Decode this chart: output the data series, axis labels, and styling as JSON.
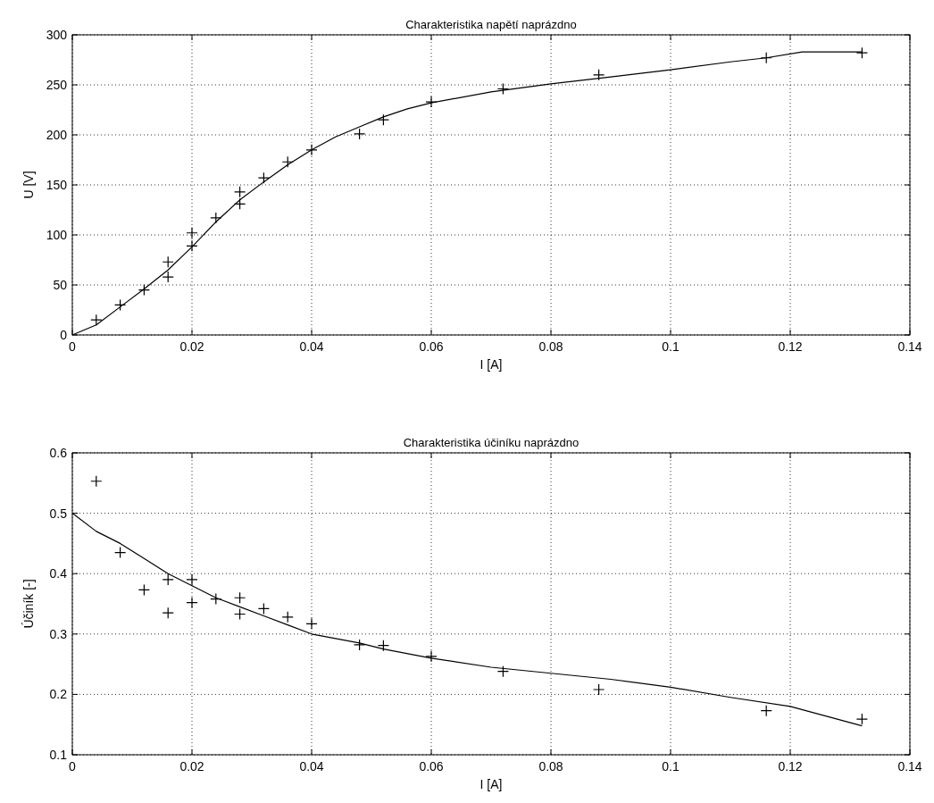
{
  "chart_data": [
    {
      "type": "scatter",
      "title": "Charakteristika napětí naprázdno",
      "xlabel": "I [A]",
      "ylabel": "U [V]",
      "xlim": [
        0,
        0.14
      ],
      "ylim": [
        0,
        300
      ],
      "xticks": [
        0,
        0.02,
        0.04,
        0.06,
        0.08,
        0.1,
        0.12,
        0.14
      ],
      "yticks": [
        0,
        50,
        100,
        150,
        200,
        250,
        300
      ],
      "grid": true,
      "series": [
        {
          "type": "scatter",
          "marker": "cross",
          "color": "#000000",
          "x": [
            0.004,
            0.008,
            0.012,
            0.016,
            0.016,
            0.02,
            0.02,
            0.024,
            0.028,
            0.028,
            0.032,
            0.036,
            0.04,
            0.048,
            0.052,
            0.06,
            0.072,
            0.088,
            0.116,
            0.132
          ],
          "values": [
            15,
            30,
            45,
            73,
            58,
            102,
            89,
            117,
            143,
            131,
            157,
            173,
            185,
            201,
            215,
            233,
            246,
            260,
            277,
            282
          ]
        },
        {
          "type": "line",
          "marker": "none",
          "line_style": "solid",
          "color": "#000000",
          "x": [
            0,
            0.004,
            0.008,
            0.012,
            0.016,
            0.02,
            0.024,
            0.028,
            0.032,
            0.036,
            0.04,
            0.044,
            0.048,
            0.052,
            0.056,
            0.06,
            0.07,
            0.08,
            0.09,
            0.1,
            0.11,
            0.116,
            0.122,
            0.132
          ],
          "values": [
            0,
            10,
            28,
            46,
            65,
            88,
            113,
            135,
            153,
            170,
            185,
            198,
            208,
            218,
            226,
            232,
            243,
            251,
            258,
            265,
            273,
            277,
            283,
            283
          ]
        }
      ]
    },
    {
      "type": "scatter",
      "title": "Charakteristika účiníku naprázdno",
      "xlabel": "I [A]",
      "ylabel": "Účiník [-]",
      "xlim": [
        0,
        0.14
      ],
      "ylim": [
        0.1,
        0.6
      ],
      "xticks": [
        0,
        0.02,
        0.04,
        0.06,
        0.08,
        0.1,
        0.12,
        0.14
      ],
      "yticks": [
        0.1,
        0.2,
        0.3,
        0.4,
        0.5,
        0.6
      ],
      "grid": true,
      "series": [
        {
          "type": "scatter",
          "marker": "cross",
          "color": "#000000",
          "x": [
            0.004,
            0.008,
            0.012,
            0.016,
            0.016,
            0.02,
            0.02,
            0.024,
            0.028,
            0.028,
            0.032,
            0.036,
            0.04,
            0.048,
            0.052,
            0.06,
            0.072,
            0.088,
            0.116,
            0.132
          ],
          "values": [
            0.553,
            0.435,
            0.373,
            0.39,
            0.335,
            0.39,
            0.352,
            0.358,
            0.36,
            0.333,
            0.342,
            0.328,
            0.317,
            0.282,
            0.281,
            0.263,
            0.238,
            0.208,
            0.173,
            0.159
          ]
        },
        {
          "type": "line",
          "marker": "none",
          "line_style": "solid",
          "color": "#000000",
          "x": [
            0,
            0.004,
            0.008,
            0.012,
            0.016,
            0.02,
            0.024,
            0.028,
            0.032,
            0.036,
            0.04,
            0.048,
            0.052,
            0.06,
            0.07,
            0.08,
            0.09,
            0.1,
            0.11,
            0.12,
            0.132
          ],
          "values": [
            0.5,
            0.47,
            0.45,
            0.425,
            0.4,
            0.38,
            0.36,
            0.345,
            0.33,
            0.315,
            0.3,
            0.285,
            0.275,
            0.26,
            0.245,
            0.235,
            0.225,
            0.212,
            0.195,
            0.18,
            0.148
          ]
        }
      ]
    }
  ]
}
